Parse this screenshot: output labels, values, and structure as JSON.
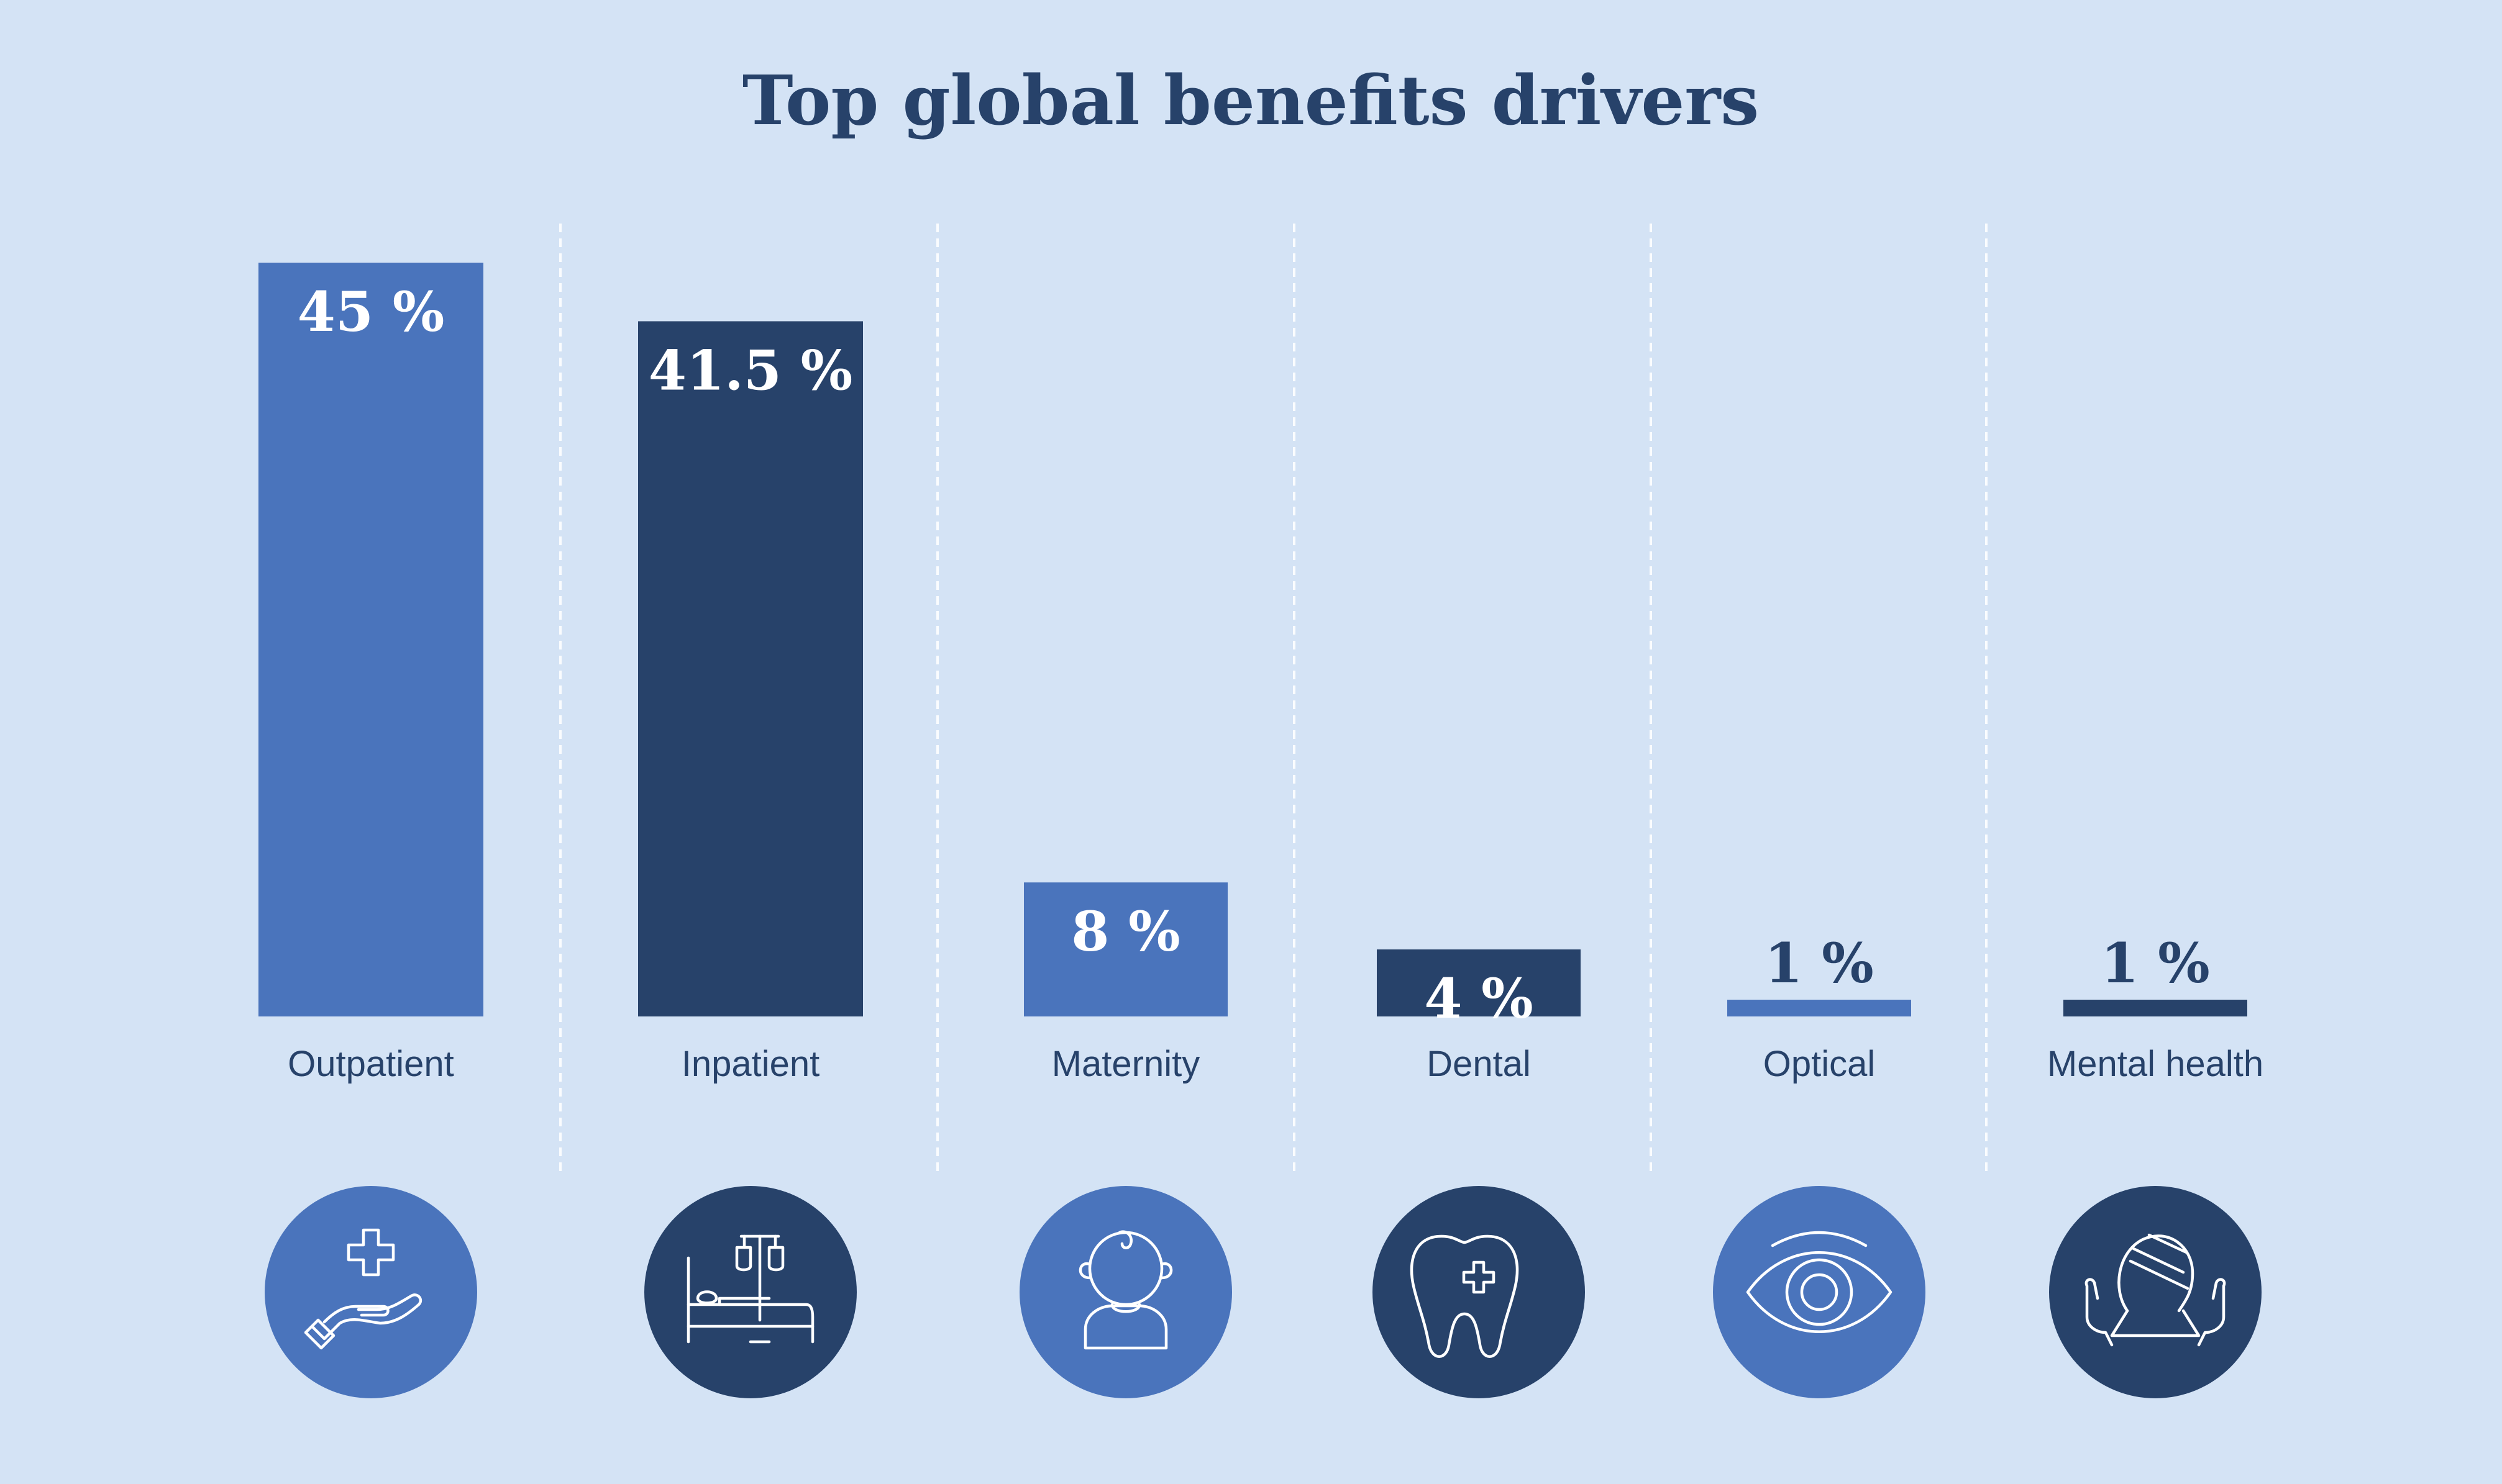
{
  "colors": {
    "background": "#d4e3f5",
    "light": "#4a74bc",
    "dark": "#27426a",
    "title": "#27426a"
  },
  "chart_data": {
    "type": "bar",
    "title": "Top global benefits drivers",
    "categories": [
      "Outpatient",
      "Inpatient",
      "Maternity",
      "Dental",
      "Optical",
      "Mental health"
    ],
    "values": [
      45,
      41.5,
      8,
      4,
      1,
      1
    ],
    "value_labels": [
      "45 %",
      "41.5 %",
      "8 %",
      "4 %",
      "1 %",
      "1 %"
    ],
    "bar_colors": [
      "light",
      "dark",
      "light",
      "dark",
      "light",
      "dark"
    ],
    "icons": [
      "hand-medical-cross-icon",
      "hospital-bed-icon",
      "baby-icon",
      "tooth-icon",
      "eye-icon",
      "hands-head-icon"
    ],
    "ylim": [
      0,
      45
    ],
    "grid": false,
    "legend": "none"
  }
}
